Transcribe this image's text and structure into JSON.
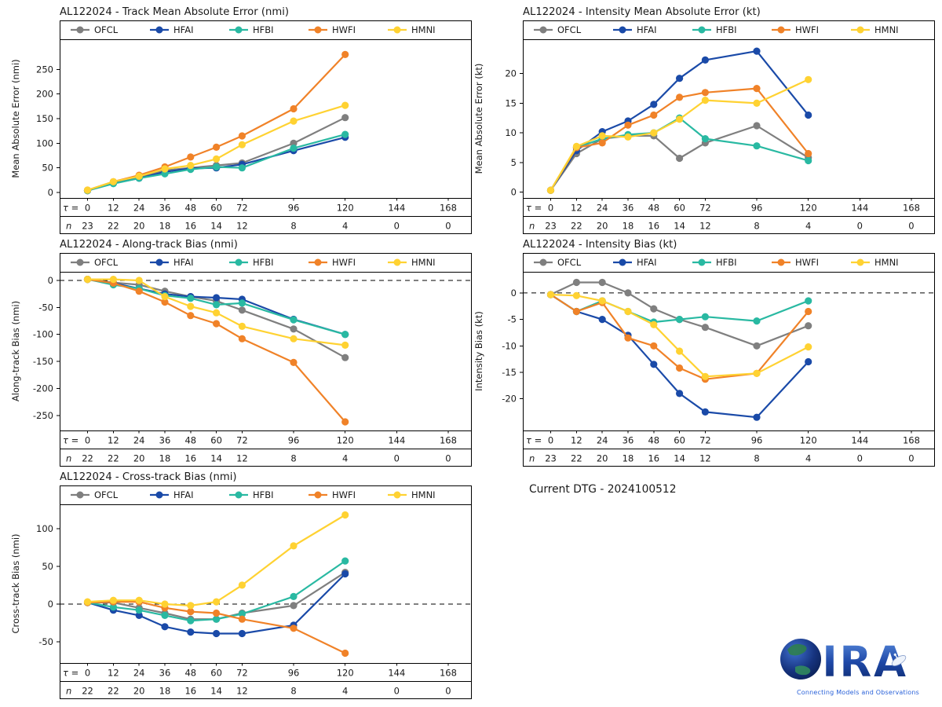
{
  "footer": {
    "current_dtg": "Current DTG - 2024100512"
  },
  "logo": {
    "letters": "IRA",
    "tagline": "Connecting Models and Observations"
  },
  "legend": {
    "labels": [
      "OFCL",
      "HFAI",
      "HFBI",
      "HWFI",
      "HMNI"
    ],
    "colors": {
      "OFCL": "#7f7f7f",
      "HFAI": "#1a4aa8",
      "HFBI": "#29b9a2",
      "HWFI": "#f08228",
      "HMNI": "#ffd232"
    }
  },
  "chart_data": [
    {
      "id": "track-mae",
      "type": "line",
      "title": "AL122024 - Track Mean Absolute Error (nmi)",
      "ylabel": "Mean Absolute Error (nmi)",
      "yticks": [
        0,
        50,
        100,
        150,
        200,
        250
      ],
      "ylim": [
        -11,
        311
      ],
      "zero_line": false,
      "x_row_label": "τ",
      "n_row_label": "n",
      "taus": [
        0,
        12,
        24,
        36,
        48,
        60,
        72,
        96,
        120,
        144,
        168
      ],
      "n_values": [
        23,
        22,
        20,
        18,
        16,
        14,
        12,
        8,
        4,
        0,
        0
      ],
      "series": [
        {
          "name": "OFCL",
          "values": [
            4,
            20,
            30,
            45,
            50,
            55,
            60,
            100,
            152
          ]
        },
        {
          "name": "HFAI",
          "values": [
            4,
            19,
            29,
            42,
            49,
            50,
            57,
            85,
            112
          ]
        },
        {
          "name": "HFBI",
          "values": [
            4,
            18,
            29,
            38,
            47,
            52,
            50,
            90,
            118
          ]
        },
        {
          "name": "HWFI",
          "values": [
            5,
            22,
            35,
            52,
            72,
            92,
            115,
            170,
            280
          ]
        },
        {
          "name": "HMNI",
          "values": [
            5,
            22,
            33,
            48,
            55,
            68,
            97,
            145,
            177
          ]
        }
      ]
    },
    {
      "id": "intensity-mae",
      "type": "line",
      "title": "AL122024 - Intensity Mean Absolute Error (kt)",
      "ylabel": "Mean Absolute Error (kt)",
      "yticks": [
        0,
        5,
        10,
        15,
        20
      ],
      "ylim": [
        -1,
        25.8
      ],
      "zero_line": false,
      "x_row_label": "τ",
      "n_row_label": "n",
      "taus": [
        0,
        12,
        24,
        36,
        48,
        60,
        72,
        96,
        120,
        144,
        168
      ],
      "n_values": [
        23,
        22,
        20,
        18,
        16,
        14,
        12,
        8,
        4,
        0,
        0
      ],
      "series": [
        {
          "name": "OFCL",
          "values": [
            0.3,
            6.5,
            9,
            9.5,
            9.5,
            5.7,
            8.3,
            11.2,
            5.8
          ]
        },
        {
          "name": "HFAI",
          "values": [
            0.3,
            7,
            10.2,
            12,
            14.8,
            19.2,
            22.3,
            23.8,
            13
          ]
        },
        {
          "name": "HFBI",
          "values": [
            0.3,
            7.5,
            9,
            9.7,
            10,
            12.5,
            9,
            7.8,
            5.3
          ]
        },
        {
          "name": "HWFI",
          "values": [
            0.3,
            7.5,
            8.3,
            11.3,
            13,
            16,
            16.8,
            17.5,
            6.5
          ]
        },
        {
          "name": "HMNI",
          "values": [
            0.3,
            7.7,
            9.5,
            9.3,
            10,
            12.3,
            15.5,
            15,
            19
          ]
        }
      ]
    },
    {
      "id": "along-track-bias",
      "type": "line",
      "title": "AL122024 - Along-track Bias (nmi)",
      "ylabel": "Along-track Bias (nmi)",
      "yticks": [
        0,
        -50,
        -100,
        -150,
        -200,
        -250
      ],
      "ylim": [
        -278,
        16
      ],
      "zero_line": true,
      "x_row_label": "τ",
      "n_row_label": "n",
      "taus": [
        0,
        12,
        24,
        36,
        48,
        60,
        72,
        96,
        120,
        144,
        168
      ],
      "n_values": [
        22,
        22,
        20,
        18,
        16,
        14,
        12,
        8,
        4,
        0,
        0
      ],
      "series": [
        {
          "name": "OFCL",
          "values": [
            2,
            -4,
            -8,
            -20,
            -30,
            -38,
            -55,
            -90,
            -143
          ]
        },
        {
          "name": "HFAI",
          "values": [
            2,
            -5,
            -15,
            -25,
            -30,
            -32,
            -35,
            -72,
            -100
          ]
        },
        {
          "name": "HFBI",
          "values": [
            2,
            -8,
            -15,
            -28,
            -33,
            -45,
            -42,
            -73,
            -100
          ]
        },
        {
          "name": "HWFI",
          "values": [
            2,
            -5,
            -20,
            -40,
            -65,
            -80,
            -108,
            -152,
            -262
          ]
        },
        {
          "name": "HMNI",
          "values": [
            2,
            2,
            0,
            -30,
            -48,
            -60,
            -85,
            -108,
            -120
          ]
        }
      ]
    },
    {
      "id": "intensity-bias",
      "type": "line",
      "title": "AL122024 - Intensity Bias (kt)",
      "ylabel": "Intensity Bias (kt)",
      "yticks": [
        0,
        -5,
        -10,
        -15,
        -20
      ],
      "ylim": [
        -26,
        4
      ],
      "zero_line": true,
      "x_row_label": "τ",
      "n_row_label": "n",
      "taus": [
        0,
        12,
        24,
        36,
        48,
        60,
        72,
        96,
        120,
        144,
        168
      ],
      "n_values": [
        23,
        22,
        20,
        18,
        16,
        14,
        12,
        8,
        4,
        0,
        0
      ],
      "series": [
        {
          "name": "OFCL",
          "values": [
            -0.3,
            2,
            2,
            0,
            -3,
            -5,
            -6.5,
            -10,
            -6.2
          ]
        },
        {
          "name": "HFAI",
          "values": [
            -0.3,
            -3.5,
            -5,
            -8,
            -13.5,
            -19,
            -22.5,
            -23.5,
            -13
          ]
        },
        {
          "name": "HFBI",
          "values": [
            -0.3,
            -3.5,
            -1.5,
            -3.5,
            -5.5,
            -5,
            -4.5,
            -5.3,
            -1.5
          ]
        },
        {
          "name": "HWFI",
          "values": [
            -0.3,
            -3.5,
            -1.8,
            -8.5,
            -10,
            -14.2,
            -16.3,
            -15.2,
            -3.5
          ]
        },
        {
          "name": "HMNI",
          "values": [
            -0.3,
            -0.5,
            -1.5,
            -3.5,
            -6,
            -11,
            -15.8,
            -15.2,
            -10.2
          ]
        }
      ]
    },
    {
      "id": "cross-track-bias",
      "type": "line",
      "title": "AL122024 - Cross-track Bias (nmi)",
      "ylabel": "Cross-track Bias (nmi)",
      "yticks": [
        -50,
        0,
        50,
        100
      ],
      "ylim": [
        -78,
        132
      ],
      "zero_line": true,
      "x_row_label": "τ",
      "n_row_label": "n",
      "taus": [
        0,
        12,
        24,
        36,
        48,
        60,
        72,
        96,
        120,
        144,
        168
      ],
      "n_values": [
        22,
        22,
        20,
        18,
        16,
        14,
        12,
        8,
        4,
        0,
        0
      ],
      "series": [
        {
          "name": "OFCL",
          "values": [
            2,
            2,
            -5,
            -12,
            -20,
            -20,
            -12,
            -2,
            42
          ]
        },
        {
          "name": "HFAI",
          "values": [
            2,
            -8,
            -15,
            -30,
            -37,
            -39,
            -39,
            -28,
            40
          ]
        },
        {
          "name": "HFBI",
          "values": [
            2,
            -4,
            -8,
            -15,
            -22,
            -20,
            -13,
            10,
            57
          ]
        },
        {
          "name": "HWFI",
          "values": [
            2,
            3,
            3,
            -5,
            -10,
            -12,
            -20,
            -32,
            -65
          ]
        },
        {
          "name": "HMNI",
          "values": [
            3,
            5,
            5,
            0,
            -2,
            3,
            25,
            77,
            118
          ]
        }
      ]
    }
  ]
}
